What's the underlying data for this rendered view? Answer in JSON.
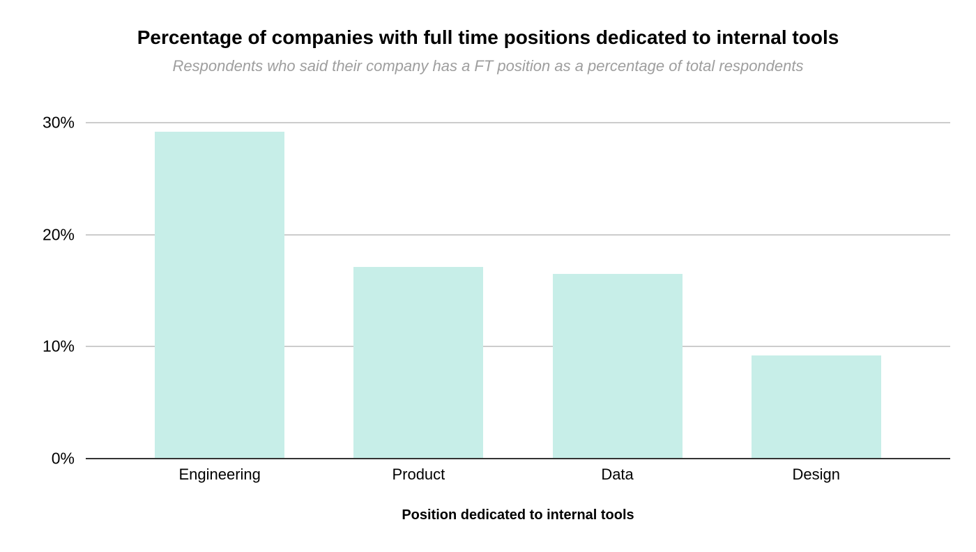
{
  "chart_data": {
    "type": "bar",
    "title": "Percentage of companies with full time positions dedicated to internal tools",
    "subtitle": "Respondents who said their company has a FT position as a percentage of total respondents",
    "xlabel": "Position dedicated to internal tools",
    "ylabel": "",
    "categories": [
      "Engineering",
      "Product",
      "Data",
      "Design"
    ],
    "values": [
      29.2,
      17.1,
      16.5,
      9.2
    ],
    "y_ticks": [
      "0%",
      "10%",
      "20%",
      "30%"
    ],
    "ylim": [
      0,
      30
    ],
    "grid": true,
    "legend": "none",
    "bar_color": "#c7eee8",
    "gridline_color": "#cccccc",
    "axis_line_color": "#333333",
    "title_color": "#000000",
    "subtitle_color": "#9e9e9e"
  }
}
